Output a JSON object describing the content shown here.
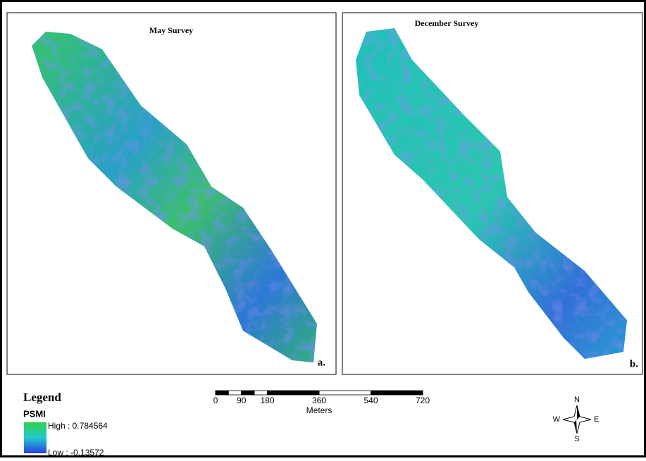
{
  "panels": [
    {
      "title": "May Survey",
      "label": "a."
    },
    {
      "title": "December Survey",
      "label": "b."
    }
  ],
  "legend": {
    "title": "Legend",
    "layer": "PSMI",
    "high": "High : 0.784564",
    "low": "Low : -0.13572"
  },
  "scale_bar": {
    "ticks": [
      0,
      90,
      180,
      360,
      540,
      720
    ],
    "unit": "Meters"
  },
  "compass": {
    "n": "N",
    "s": "S",
    "e": "E",
    "w": "W"
  }
}
